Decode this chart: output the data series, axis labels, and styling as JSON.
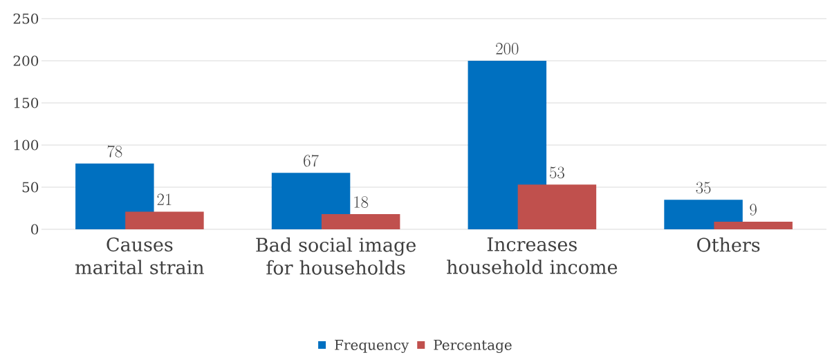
{
  "chart_data": {
    "type": "bar",
    "categories": [
      "Causes marital strain",
      "Bad social image for households",
      "Increases household income",
      "Others"
    ],
    "series": [
      {
        "name": "Frequency",
        "color": "#0070c0",
        "values": [
          78,
          67,
          200,
          35
        ]
      },
      {
        "name": "Percentage",
        "color": "#c0504d",
        "values": [
          21,
          18,
          53,
          9
        ]
      }
    ],
    "ylim": [
      0,
      250
    ],
    "yticks": [
      0,
      50,
      100,
      150,
      200,
      250
    ],
    "grid": "y",
    "legend": "bottom",
    "data_labels": true
  }
}
